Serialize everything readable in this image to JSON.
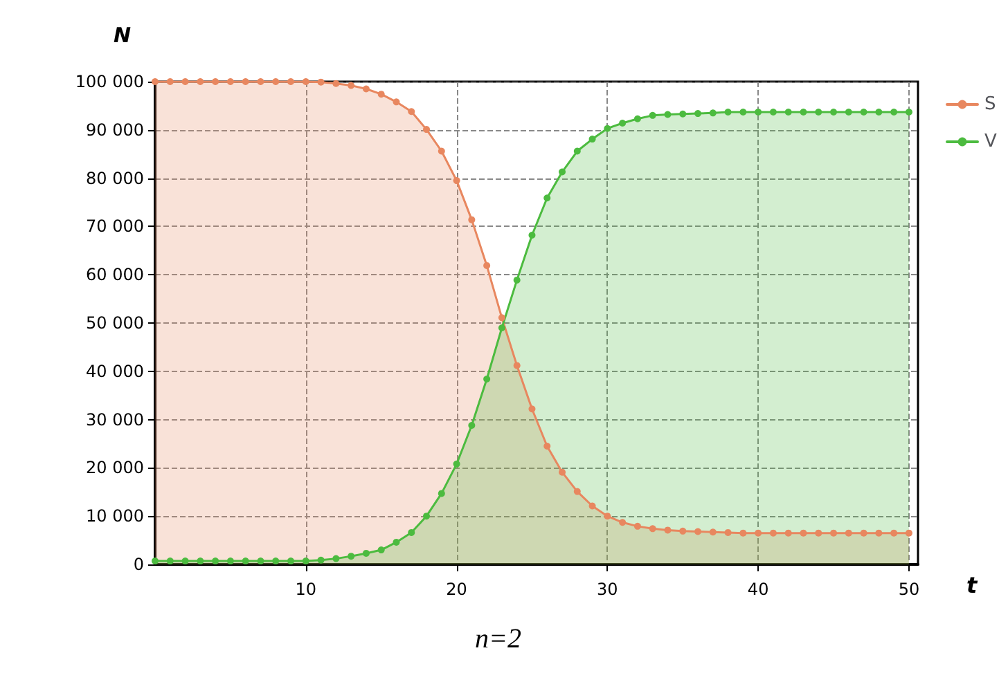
{
  "chart_data": {
    "type": "area",
    "xlabel": "t",
    "ylabel": "N",
    "annotations": [
      "n=2"
    ],
    "x": [
      0,
      1,
      2,
      3,
      4,
      5,
      6,
      7,
      8,
      9,
      10,
      11,
      12,
      13,
      14,
      15,
      16,
      17,
      18,
      19,
      20,
      21,
      22,
      23,
      24,
      25,
      26,
      27,
      28,
      29,
      30,
      31,
      32,
      33,
      34,
      35,
      36,
      37,
      38,
      39,
      40,
      41,
      42,
      43,
      44,
      45,
      46,
      47,
      48,
      49,
      50
    ],
    "series": [
      {
        "name": "S",
        "color": "#e8875f",
        "values": [
          100000,
          100000,
          100000,
          100000,
          100000,
          100000,
          100000,
          100000,
          100000,
          100000,
          100000,
          99900,
          99600,
          99200,
          98500,
          97400,
          95800,
          93800,
          90100,
          85600,
          79500,
          71400,
          61900,
          51100,
          41200,
          32200,
          24500,
          19100,
          15100,
          12100,
          10000,
          8700,
          7900,
          7400,
          7100,
          6900,
          6800,
          6700,
          6600,
          6500,
          6500,
          6500,
          6500,
          6500,
          6500,
          6500,
          6500,
          6500,
          6500,
          6500,
          6500
        ]
      },
      {
        "name": "V",
        "color": "#4cbb3f",
        "values": [
          700,
          700,
          700,
          700,
          700,
          700,
          700,
          700,
          700,
          700,
          700,
          900,
          1200,
          1700,
          2300,
          3000,
          4600,
          6600,
          10000,
          14700,
          20800,
          28800,
          38400,
          49000,
          58900,
          68200,
          75900,
          81300,
          85600,
          88100,
          90300,
          91400,
          92300,
          93000,
          93200,
          93300,
          93400,
          93500,
          93700,
          93700,
          93700,
          93700,
          93700,
          93700,
          93700,
          93700,
          93700,
          93700,
          93700,
          93700,
          93700
        ]
      }
    ],
    "xlim": [
      0,
      50.6
    ],
    "xticks": [
      10,
      20,
      30,
      40,
      50
    ],
    "ylim": [
      0,
      100000
    ],
    "yticks": [
      {
        "value": 0,
        "label": "0"
      },
      {
        "value": 10000,
        "label": "10 000"
      },
      {
        "value": 20000,
        "label": "20 000"
      },
      {
        "value": 30000,
        "label": "30 000"
      },
      {
        "value": 40000,
        "label": "40 000"
      },
      {
        "value": 50000,
        "label": "50 000"
      },
      {
        "value": 60000,
        "label": "60 000"
      },
      {
        "value": 70000,
        "label": "70 000"
      },
      {
        "value": 80000,
        "label": "80 000"
      },
      {
        "value": 90000,
        "label": "90 000"
      },
      {
        "value": 100000,
        "label": "100 000"
      }
    ],
    "grid": true,
    "legend": "right",
    "marker": "circle",
    "line_style": "solid"
  }
}
